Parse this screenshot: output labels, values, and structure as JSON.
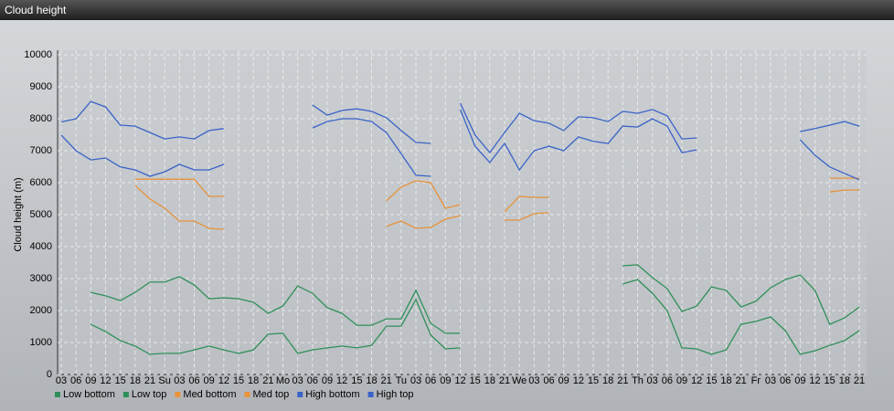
{
  "chart_data": {
    "type": "line",
    "title": "Cloud height",
    "y_label": "Cloud height (m)",
    "categories": [
      "03",
      "06",
      "09",
      "12",
      "15",
      "18",
      "21",
      "Su",
      "03",
      "06",
      "09",
      "12",
      "15",
      "18",
      "21",
      "Mo",
      "03",
      "06",
      "09",
      "12",
      "15",
      "18",
      "21",
      "Tu",
      "03",
      "06",
      "09",
      "12",
      "15",
      "18",
      "21",
      "We",
      "03",
      "06",
      "09",
      "12",
      "15",
      "18",
      "21",
      "Th",
      "03",
      "06",
      "09",
      "12",
      "15",
      "18",
      "21",
      "Fr",
      "03",
      "06",
      "09",
      "12",
      "15",
      "18",
      "21"
    ],
    "ylim": [
      0,
      10000
    ],
    "yticks": [
      0,
      1000,
      2000,
      3000,
      4000,
      5000,
      6000,
      7000,
      8000,
      9000,
      10000
    ],
    "grid": true,
    "series": [
      {
        "name": "Low bottom",
        "color": "#2f8f5a",
        "values": [
          null,
          null,
          1570,
          1340,
          1060,
          890,
          630,
          660,
          660,
          770,
          890,
          770,
          660,
          770,
          1260,
          1290,
          660,
          770,
          830,
          890,
          830,
          910,
          1510,
          1510,
          2340,
          1230,
          800,
          830,
          null,
          null,
          null,
          null,
          null,
          null,
          null,
          null,
          null,
          null,
          2830,
          2970,
          2540,
          2000,
          830,
          800,
          630,
          770,
          1570,
          1660,
          1800,
          1370,
          630,
          740,
          910,
          1060,
          1370
        ]
      },
      {
        "name": "Low top",
        "color": "#2f8f5a",
        "values": [
          null,
          null,
          2570,
          2460,
          2310,
          2570,
          2890,
          2890,
          3060,
          2800,
          2370,
          2400,
          2370,
          2260,
          1910,
          2140,
          2770,
          2540,
          2090,
          1910,
          1540,
          1540,
          1740,
          1740,
          2630,
          1600,
          1290,
          1290,
          null,
          null,
          null,
          null,
          null,
          null,
          null,
          null,
          null,
          null,
          3400,
          3430,
          3030,
          2690,
          1970,
          2140,
          2740,
          2630,
          2110,
          2290,
          2710,
          2970,
          3110,
          2630,
          1570,
          1770,
          2110
        ]
      },
      {
        "name": "Med bottom",
        "color": "#e8923a",
        "values": [
          null,
          null,
          null,
          null,
          null,
          5910,
          5490,
          5200,
          4800,
          4800,
          4570,
          4540,
          null,
          null,
          null,
          null,
          null,
          null,
          null,
          null,
          null,
          null,
          4630,
          4800,
          4570,
          4600,
          4860,
          4970,
          null,
          null,
          4830,
          4830,
          5030,
          5060,
          null,
          null,
          null,
          null,
          null,
          null,
          null,
          null,
          null,
          null,
          null,
          null,
          null,
          null,
          null,
          null,
          null,
          null,
          5710,
          5770,
          5770
        ]
      },
      {
        "name": "Med top",
        "color": "#e8923a",
        "values": [
          null,
          null,
          null,
          null,
          null,
          6110,
          6110,
          6110,
          6110,
          6110,
          5570,
          5570,
          null,
          null,
          null,
          null,
          null,
          null,
          null,
          null,
          null,
          null,
          5430,
          5860,
          6060,
          6000,
          5200,
          5310,
          null,
          null,
          5090,
          5570,
          5540,
          5540,
          null,
          null,
          null,
          null,
          null,
          null,
          null,
          null,
          null,
          null,
          null,
          null,
          null,
          null,
          null,
          null,
          null,
          null,
          6140,
          6140,
          6140
        ]
      },
      {
        "name": "High bottom",
        "color": "#3a63c8",
        "values": [
          7490,
          7000,
          6710,
          6770,
          6490,
          6400,
          6200,
          6340,
          6570,
          6400,
          6400,
          6570,
          null,
          null,
          null,
          null,
          null,
          7710,
          7910,
          8000,
          8000,
          7910,
          7570,
          6910,
          6230,
          6200,
          null,
          8290,
          7140,
          6630,
          7230,
          6400,
          7000,
          7140,
          7000,
          7430,
          7290,
          7230,
          7770,
          7740,
          8000,
          7770,
          6940,
          7030,
          null,
          null,
          null,
          null,
          null,
          null,
          7340,
          6860,
          6490,
          6290,
          6090
        ]
      },
      {
        "name": "High top",
        "color": "#3a63c8",
        "values": [
          7900,
          8000,
          8540,
          8370,
          7800,
          7770,
          7570,
          7370,
          7430,
          7370,
          7630,
          7690,
          null,
          null,
          null,
          null,
          null,
          8430,
          8110,
          8260,
          8310,
          8230,
          8030,
          7630,
          7260,
          7230,
          null,
          8490,
          7490,
          6940,
          7570,
          8170,
          7940,
          7860,
          7630,
          8060,
          8030,
          7910,
          8230,
          8170,
          8290,
          8090,
          7370,
          7400,
          null,
          null,
          null,
          null,
          null,
          null,
          7600,
          7690,
          7800,
          7910,
          7770
        ]
      }
    ]
  }
}
